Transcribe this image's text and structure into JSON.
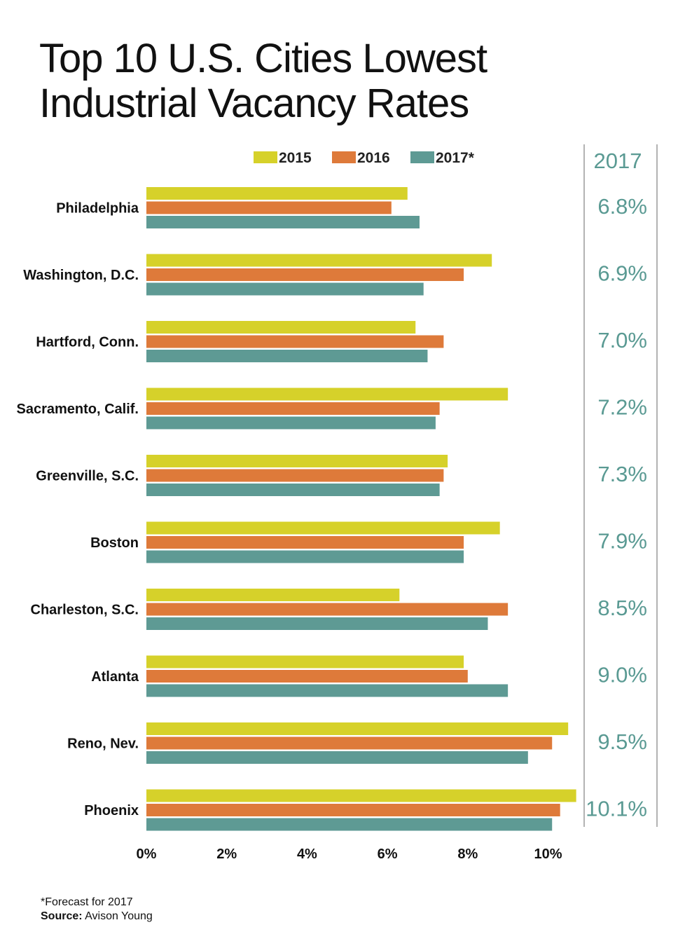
{
  "title_line1": "Top 10 U.S. Cities Lowest",
  "title_line2": "Industrial Vacancy Rates",
  "footnote": "*Forecast for 2017",
  "source_label": "Source:",
  "source_value": "Avison Young",
  "side_header": "2017",
  "chart_data": {
    "type": "bar",
    "orientation": "horizontal",
    "categories": [
      "Philadelphia",
      "Washington, D.C.",
      "Hartford, Conn.",
      "Sacramento, Calif.",
      "Greenville, S.C.",
      "Boston",
      "Charleston, S.C.",
      "Atlanta",
      "Reno, Nev.",
      "Phoenix"
    ],
    "series": [
      {
        "name": "2015",
        "color": "#d6d12a",
        "values": [
          6.5,
          8.6,
          6.7,
          9.0,
          7.5,
          8.8,
          6.3,
          7.9,
          10.5,
          10.7
        ]
      },
      {
        "name": "2016",
        "color": "#de7a3a",
        "values": [
          6.1,
          7.9,
          7.4,
          7.3,
          7.4,
          7.9,
          9.0,
          8.0,
          10.1,
          10.3
        ]
      },
      {
        "name": "2017*",
        "color": "#5e9a94",
        "values": [
          6.8,
          6.9,
          7.0,
          7.2,
          7.3,
          7.9,
          8.5,
          9.0,
          9.5,
          10.1
        ]
      }
    ],
    "side_labels": [
      "6.8%",
      "6.9%",
      "7.0%",
      "7.2%",
      "7.3%",
      "7.9%",
      "8.5%",
      "9.0%",
      "9.5%",
      "10.1%"
    ],
    "x_ticks": [
      "0%",
      "2%",
      "4%",
      "6%",
      "8%",
      "10%"
    ],
    "xlim": [
      0,
      12
    ],
    "legend_position": "top",
    "grid": false
  }
}
